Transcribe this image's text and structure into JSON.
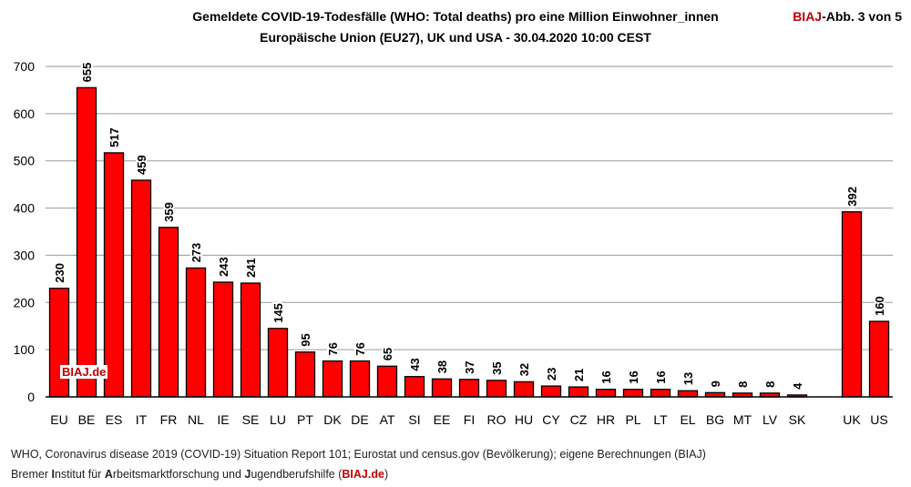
{
  "header": {
    "title_line1": "Gemeldete COVID-19-Todesfälle (WHO: Total deaths) pro eine Million Einwohner_innen",
    "title_line2": "Europäische Union (EU27), UK und USA - 30.04.2020 10:00 CEST",
    "badge_brand": "BIAJ",
    "badge_rest": "-Abb. 3 von 5"
  },
  "watermark": "BIAJ.de",
  "footer": {
    "source": "WHO, Coronavirus disease 2019 (COVID-19) Situation Report 101; Eurostat und census.gov (Bevölkerung); eigene Berechnungen (BIAJ)",
    "org_parts": [
      {
        "text": "Bremer ",
        "bold": false
      },
      {
        "text": "I",
        "bold": true
      },
      {
        "text": "nstitut für ",
        "bold": false
      },
      {
        "text": "A",
        "bold": true
      },
      {
        "text": "rbeitsmarktforschung und ",
        "bold": false
      },
      {
        "text": "J",
        "bold": true
      },
      {
        "text": "ugendberufshilfe (",
        "bold": false
      },
      {
        "text": "BIAJ.de",
        "bold": true,
        "red": true
      },
      {
        "text": ")",
        "bold": false
      }
    ]
  },
  "chart_data": {
    "type": "bar",
    "title": "Gemeldete COVID-19-Todesfälle (WHO: Total deaths) pro eine Million Einwohner_innen",
    "subtitle": "Europäische Union (EU27), UK und USA - 30.04.2020 10:00 CEST",
    "categories": [
      "EU",
      "BE",
      "ES",
      "IT",
      "FR",
      "NL",
      "IE",
      "SE",
      "LU",
      "PT",
      "DK",
      "DE",
      "AT",
      "SI",
      "EE",
      "FI",
      "RO",
      "HU",
      "CY",
      "CZ",
      "HR",
      "PL",
      "LT",
      "EL",
      "BG",
      "MT",
      "LV",
      "SK",
      "",
      "UK",
      "US"
    ],
    "values": [
      230,
      655,
      517,
      459,
      359,
      273,
      243,
      241,
      145,
      95,
      76,
      76,
      65,
      43,
      38,
      37,
      35,
      32,
      23,
      21,
      16,
      16,
      16,
      13,
      9,
      8,
      8,
      4,
      null,
      392,
      160
    ],
    "ylim": [
      0,
      700
    ],
    "yticks": [
      0,
      100,
      200,
      300,
      400,
      500,
      600,
      700
    ],
    "grid": true,
    "bar_color": "#ff0000",
    "label_orientation": "vertical"
  }
}
